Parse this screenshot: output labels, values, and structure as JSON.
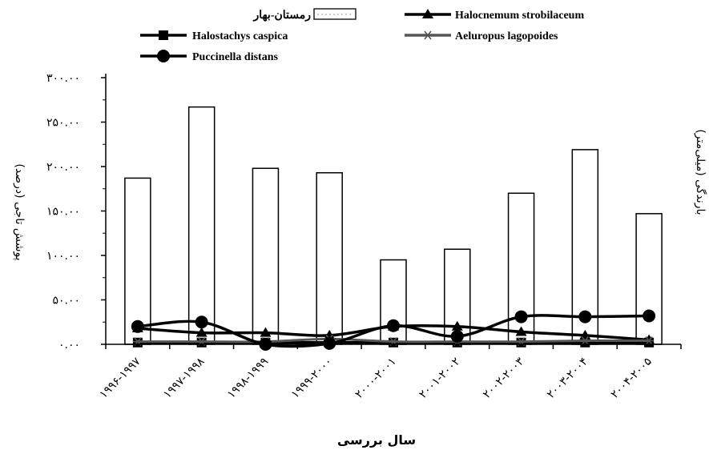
{
  "chart_data": {
    "type": "bar+line",
    "categories": [
      "۱۹۹۶-۱۹۹۷",
      "۱۹۹۷-۱۹۹۸",
      "۱۹۹۸-۱۹۹۹",
      "۱۹۹۹-۲۰۰۰",
      "۲۰۰۰-۲۰۰۱",
      "۲۰۰۱-۲۰۰۲",
      "۲۰۰۲-۲۰۰۳",
      "۲۰۰۳-۲۰۰۴",
      "۲۰۰۴-۲۰۰۵"
    ],
    "bar_series": {
      "name": "رمستان-بهار",
      "values": [
        187,
        267,
        198,
        193,
        95,
        107,
        170,
        219,
        147
      ]
    },
    "line_series": [
      {
        "name": "Halocnemum strobilaceum",
        "marker": "triangle",
        "color": "#000000",
        "values": [
          18,
          13,
          13,
          10,
          20,
          20,
          14,
          10,
          5
        ]
      },
      {
        "name": "Halostachys caspica",
        "marker": "square",
        "color": "#000000",
        "values": [
          2,
          2,
          2,
          2,
          2,
          2,
          2,
          2,
          2
        ]
      },
      {
        "name": "Aeluropus lagopoides",
        "marker": "asterisk",
        "color": "#555555",
        "values": [
          3,
          3,
          3,
          6,
          3,
          3,
          3,
          4,
          4
        ]
      },
      {
        "name": "Puccinella distans",
        "marker": "circle",
        "color": "#000000",
        "values": [
          20,
          25,
          0,
          1,
          21,
          9,
          31,
          31,
          32
        ]
      }
    ],
    "ylim": [
      0,
      300
    ],
    "yticks": [
      0,
      50,
      100,
      150,
      200,
      250,
      300
    ],
    "ytick_labels": [
      "۰.۰۰",
      "۵۰.۰۰",
      "۱۰۰.۰۰",
      "۱۵۰.۰۰",
      "۲۰۰.۰۰",
      "۲۵۰.۰۰",
      "۳۰۰.۰۰"
    ],
    "ylabel_left": "پوشش تاجی (درصد)",
    "ylabel_right": "بارندگی (میلی‌متر)",
    "xlabel": "سال بررسی",
    "legend_position": "top"
  }
}
